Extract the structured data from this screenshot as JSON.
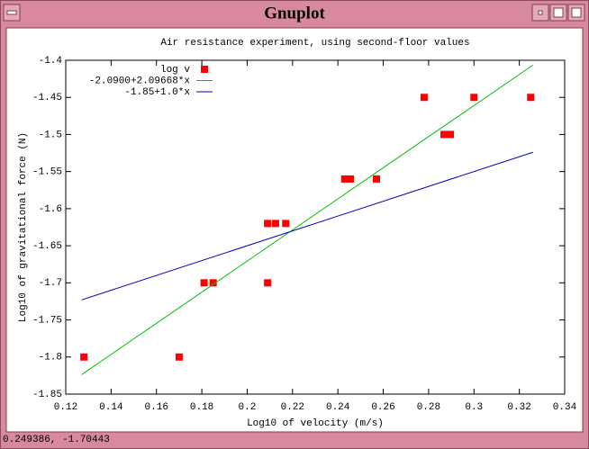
{
  "window": {
    "title": "Gnuplot",
    "status": "0.249386, -1.70443"
  },
  "chart_data": {
    "type": "scatter",
    "title": "Air resistance experiment, using second-floor values",
    "x_label": "Log10 of velocity (m/s)",
    "y_label": "Log10 of gravitational force (N)",
    "xlim": [
      0.12,
      0.34
    ],
    "ylim": [
      -1.85,
      -1.4
    ],
    "xticks": [
      0.12,
      0.14,
      0.16,
      0.18,
      0.2,
      0.22,
      0.24,
      0.26,
      0.28,
      0.3,
      0.32,
      0.34
    ],
    "yticks": [
      -1.4,
      -1.45,
      -1.5,
      -1.55,
      -1.6,
      -1.65,
      -1.7,
      -1.75,
      -1.8,
      -1.85
    ],
    "grid": false,
    "legend": "top-left",
    "series": [
      {
        "name": "log v",
        "color": "#ff0000",
        "style": "points",
        "x": [
          0.128,
          0.17,
          0.181,
          0.185,
          0.209,
          0.209,
          0.2125,
          0.217,
          0.243,
          0.2455,
          0.257,
          0.278,
          0.2868,
          0.2896,
          0.3,
          0.325
        ],
        "values": [
          -1.8,
          -1.8,
          -1.7,
          -1.7,
          -1.7,
          -1.62,
          -1.62,
          -1.62,
          -1.56,
          -1.56,
          -1.56,
          -1.45,
          -1.5,
          -1.5,
          -1.45,
          -1.45
        ]
      },
      {
        "name": "-2.0900+2.09668*x",
        "color": "#00c000",
        "style": "lines",
        "x": [
          0.127,
          0.326
        ],
        "values": [
          -1.8237,
          -1.4065
        ]
      },
      {
        "name": "-1.85+1.0*x",
        "color": "#0000c0",
        "style": "lines",
        "x": [
          0.127,
          0.326
        ],
        "values": [
          -1.723,
          -1.524
        ]
      }
    ]
  }
}
